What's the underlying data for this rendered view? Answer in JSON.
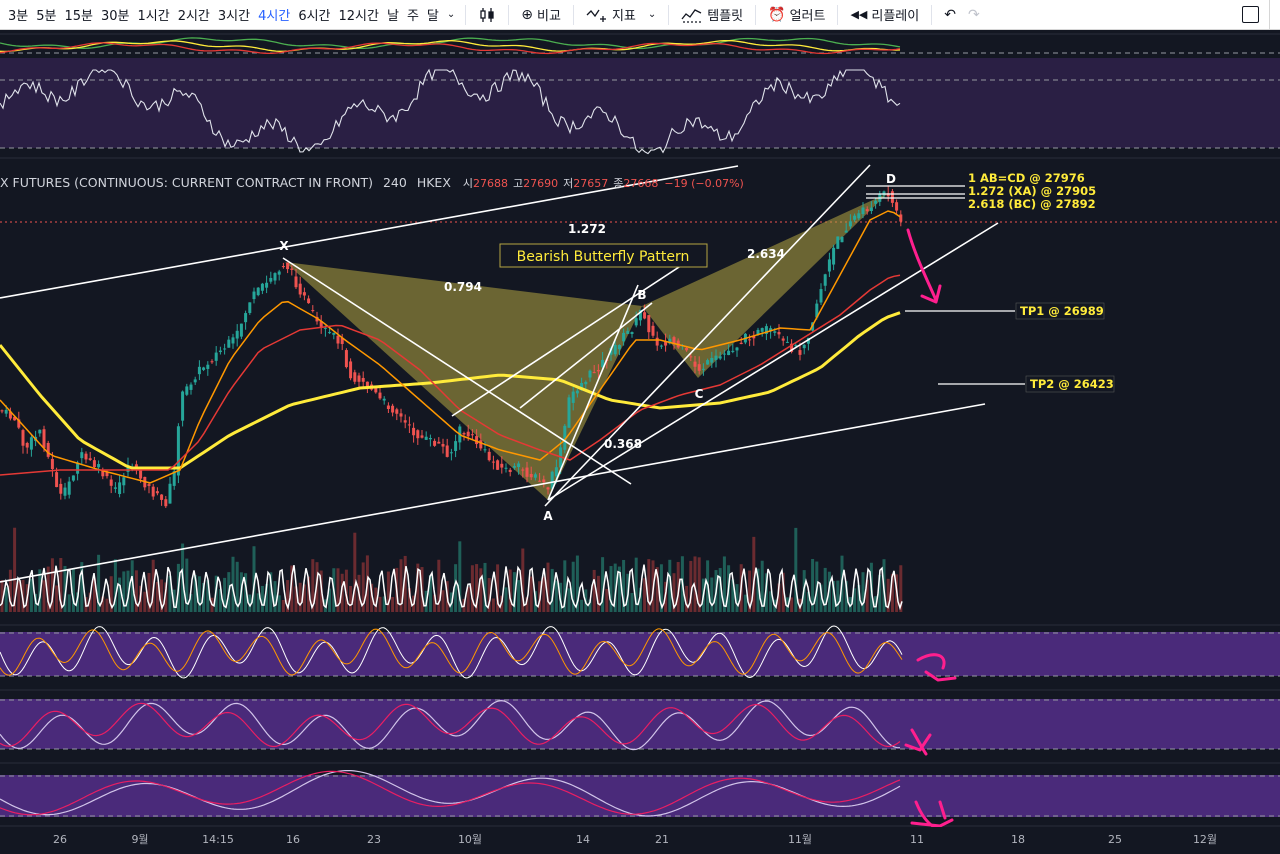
{
  "toolbar": {
    "timeframes": [
      "3분",
      "5분",
      "15분",
      "30분",
      "1시간",
      "2시간",
      "3시간",
      "4시간",
      "6시간",
      "12시간",
      "날",
      "주",
      "달"
    ],
    "active_timeframe": "4시간",
    "compare_label": "비교",
    "indicators_label": "지표",
    "templates_label": "템플릿",
    "alert_label": "얼러트",
    "replay_label": "리플레이"
  },
  "symbol": {
    "name": "X FUTURES (CONTINUOUS: CURRENT CONTRACT IN FRONT)",
    "interval": "240",
    "exchange": "HKEX",
    "open_label": "시",
    "open": "27688",
    "high_label": "고",
    "high": "27690",
    "low_label": "저",
    "low": "27657",
    "close_label": "종",
    "close": "27668",
    "change": "−19 (−0.07%)"
  },
  "annotations": {
    "pattern_title": "Bearish Butterfly Pattern",
    "points": {
      "x": "X",
      "a": "A",
      "b": "B",
      "c": "C",
      "d": "D"
    },
    "ratios": {
      "xb": "0.794",
      "xd": "1.272",
      "bc": "0.368",
      "cd": "2.634"
    },
    "targets": {
      "ab_cd": "1 AB=CD @ 27976",
      "xa": "1.272 (XA) @ 27905",
      "bc": "2.618 (BC) @ 27892",
      "tp1": "TP1 @ 26989",
      "tp2": "TP2 @ 26423"
    }
  },
  "time_axis": [
    "26",
    "9월",
    "14:15",
    "16",
    "23",
    "10월",
    "14",
    "21",
    "11월",
    "11",
    "18",
    "25",
    "12월"
  ],
  "colors": {
    "background": "#131722",
    "up": "#26a69a",
    "down": "#ef5350",
    "ma_slow": "#ffeb3b",
    "ma_mid": "#ff9800",
    "ma_fast": "#e53935",
    "pattern_fill": "#b5a642",
    "annotation_arrow": "#ff1f8e",
    "indicator_bg": "#4a2a7a"
  }
}
